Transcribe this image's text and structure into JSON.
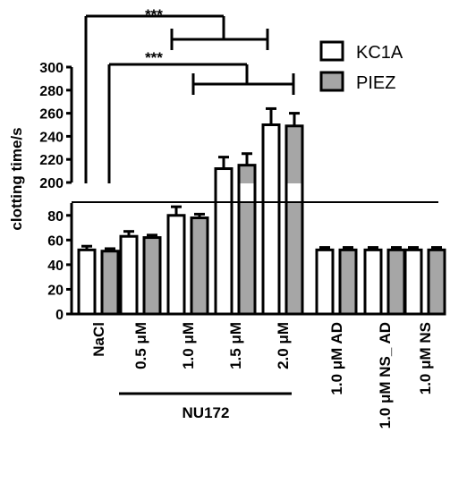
{
  "chart_data": {
    "type": "bar",
    "title": "",
    "ylabel": "clotting time/s",
    "xlabel": "",
    "y_axis_broken": true,
    "ylim_lower": [
      0,
      90
    ],
    "ylim_upper": [
      200,
      300
    ],
    "y_ticks_lower": [
      "0",
      "20",
      "40",
      "60",
      "80"
    ],
    "y_ticks_upper": [
      "200",
      "220",
      "240",
      "260",
      "280",
      "300"
    ],
    "categories": [
      "NaCl",
      "0.5 μM",
      "1.0 μM",
      "1.5 μM",
      "2.0 μM",
      "1.0 μM AD",
      "1.0 μM NS_ AD",
      "1.0 μM NS"
    ],
    "group_label": "NU172",
    "series": [
      {
        "name": "KC1A",
        "color": "#ffffff",
        "values": [
          52,
          63,
          80,
          212,
          250,
          52,
          52,
          52
        ],
        "errors": [
          3,
          4,
          7,
          10,
          14,
          2,
          2,
          2
        ]
      },
      {
        "name": "PIEZ",
        "color": "#a6a6a6",
        "values": [
          51,
          62,
          78,
          215,
          249,
          52,
          52,
          52
        ],
        "errors": [
          2,
          2,
          3,
          10,
          11,
          2,
          2,
          2
        ]
      }
    ],
    "legend_position": "top-right",
    "significance": [
      "***",
      "***"
    ]
  }
}
